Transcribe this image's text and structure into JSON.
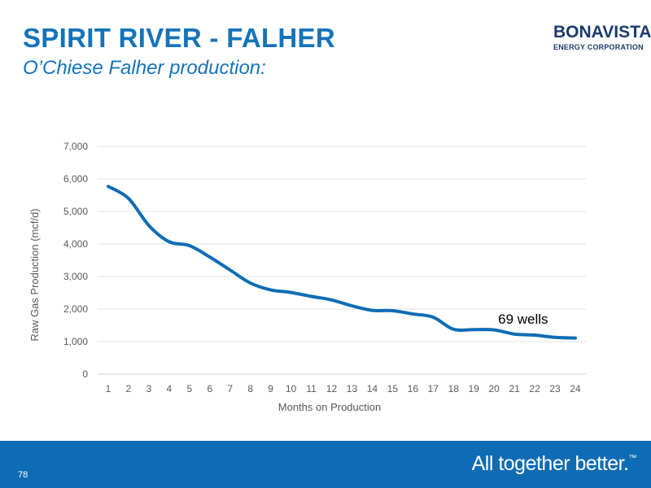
{
  "slide": {
    "title": "SPIRIT RIVER - FALHER",
    "subtitle": "O’Chiese Falher production:",
    "page_number": "78"
  },
  "logo": {
    "name": "BONAVISTA",
    "subtitle": "ENERGY CORPORATION"
  },
  "footer": {
    "tagline": "All together better.",
    "trademark": "™",
    "background_color": "#0e6cb4"
  },
  "chart_data": {
    "type": "line",
    "title": "",
    "xlabel": "Months on Production",
    "ylabel": "Raw Gas Production  (mcf/d)",
    "ylim": [
      0,
      7000
    ],
    "yticks": [
      0,
      1000,
      2000,
      3000,
      4000,
      5000,
      6000,
      7000
    ],
    "ytick_labels": [
      "0",
      "1,000",
      "2,000",
      "3,000",
      "4,000",
      "5,000",
      "6,000",
      "7,000"
    ],
    "categories": [
      "1",
      "2",
      "3",
      "4",
      "5",
      "6",
      "7",
      "8",
      "9",
      "10",
      "11",
      "12",
      "13",
      "14",
      "15",
      "16",
      "17",
      "18",
      "19",
      "20",
      "21",
      "22",
      "23",
      "24"
    ],
    "series": [
      {
        "values": [
          5770,
          5400,
          4570,
          4070,
          3950,
          3600,
          3200,
          2800,
          2590,
          2510,
          2390,
          2280,
          2100,
          1960,
          1950,
          1850,
          1750,
          1380,
          1370,
          1360,
          1230,
          1200,
          1130,
          1110
        ],
        "color": "#0e6cb4"
      }
    ],
    "annotations": [
      {
        "text": "69 wells",
        "x": "21",
        "y": 1700
      }
    ],
    "grid": true,
    "legend": "none"
  }
}
